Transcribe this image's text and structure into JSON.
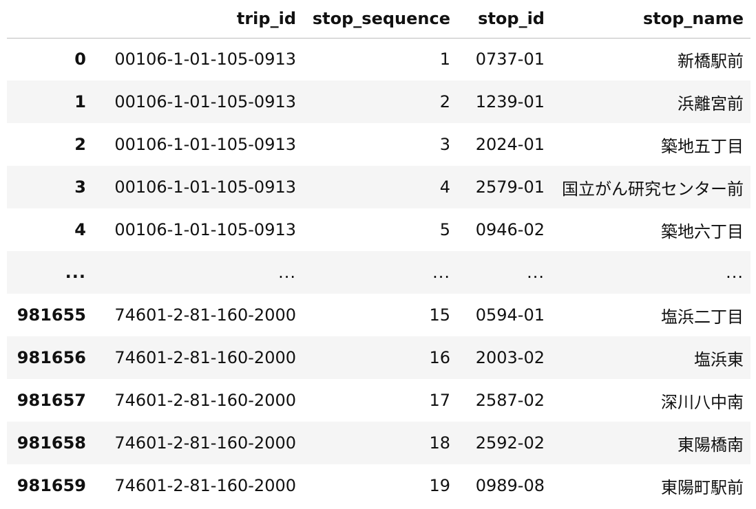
{
  "table": {
    "columns": [
      "",
      "trip_id",
      "stop_sequence",
      "stop_id",
      "stop_name"
    ],
    "rows": [
      {
        "index": "0",
        "trip_id": "00106-1-01-105-0913",
        "stop_sequence": "1",
        "stop_id": "0737-01",
        "stop_name": "新橋駅前"
      },
      {
        "index": "1",
        "trip_id": "00106-1-01-105-0913",
        "stop_sequence": "2",
        "stop_id": "1239-01",
        "stop_name": "浜離宮前"
      },
      {
        "index": "2",
        "trip_id": "00106-1-01-105-0913",
        "stop_sequence": "3",
        "stop_id": "2024-01",
        "stop_name": "築地五丁目"
      },
      {
        "index": "3",
        "trip_id": "00106-1-01-105-0913",
        "stop_sequence": "4",
        "stop_id": "2579-01",
        "stop_name": "国立がん研究センター前"
      },
      {
        "index": "4",
        "trip_id": "00106-1-01-105-0913",
        "stop_sequence": "5",
        "stop_id": "0946-02",
        "stop_name": "築地六丁目"
      },
      {
        "index": "...",
        "trip_id": "...",
        "stop_sequence": "...",
        "stop_id": "...",
        "stop_name": "..."
      },
      {
        "index": "981655",
        "trip_id": "74601-2-81-160-2000",
        "stop_sequence": "15",
        "stop_id": "0594-01",
        "stop_name": "塩浜二丁目"
      },
      {
        "index": "981656",
        "trip_id": "74601-2-81-160-2000",
        "stop_sequence": "16",
        "stop_id": "2003-02",
        "stop_name": "塩浜東"
      },
      {
        "index": "981657",
        "trip_id": "74601-2-81-160-2000",
        "stop_sequence": "17",
        "stop_id": "2587-02",
        "stop_name": "深川八中南"
      },
      {
        "index": "981658",
        "trip_id": "74601-2-81-160-2000",
        "stop_sequence": "18",
        "stop_id": "2592-02",
        "stop_name": "東陽橋南"
      },
      {
        "index": "981659",
        "trip_id": "74601-2-81-160-2000",
        "stop_sequence": "19",
        "stop_id": "0989-08",
        "stop_name": "東陽町駅前"
      }
    ]
  }
}
